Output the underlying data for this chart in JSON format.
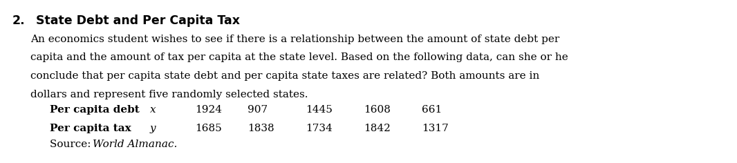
{
  "number": "2.",
  "title": "State Debt and Per Capita Tax",
  "para_lines": [
    "An economics student wishes to see if there is a relationship between the amount of state debt per",
    "capita and the amount of tax per capita at the state level. Based on the following data, can she or he",
    "conclude that per capita state debt and per capita state taxes are related? Both amounts are in",
    "dollars and represent five randomly selected states."
  ],
  "row1_label": "Per capita debt",
  "row1_var": "x",
  "row1_values": [
    "1924",
    "907",
    "1445",
    "1608",
    "661"
  ],
  "row2_label": "Per capita tax",
  "row2_var": "y",
  "row2_values": [
    "1685",
    "1838",
    "1734",
    "1842",
    "1317"
  ],
  "source_plain": "Source: ",
  "source_italic": "World Almanac.",
  "background_color": "#ffffff",
  "text_color": "#000000",
  "font_size_title": 12.5,
  "font_size_body": 11.0,
  "font_size_table": 11.0,
  "figwidth": 10.66,
  "figheight": 2.36,
  "dpi": 100
}
